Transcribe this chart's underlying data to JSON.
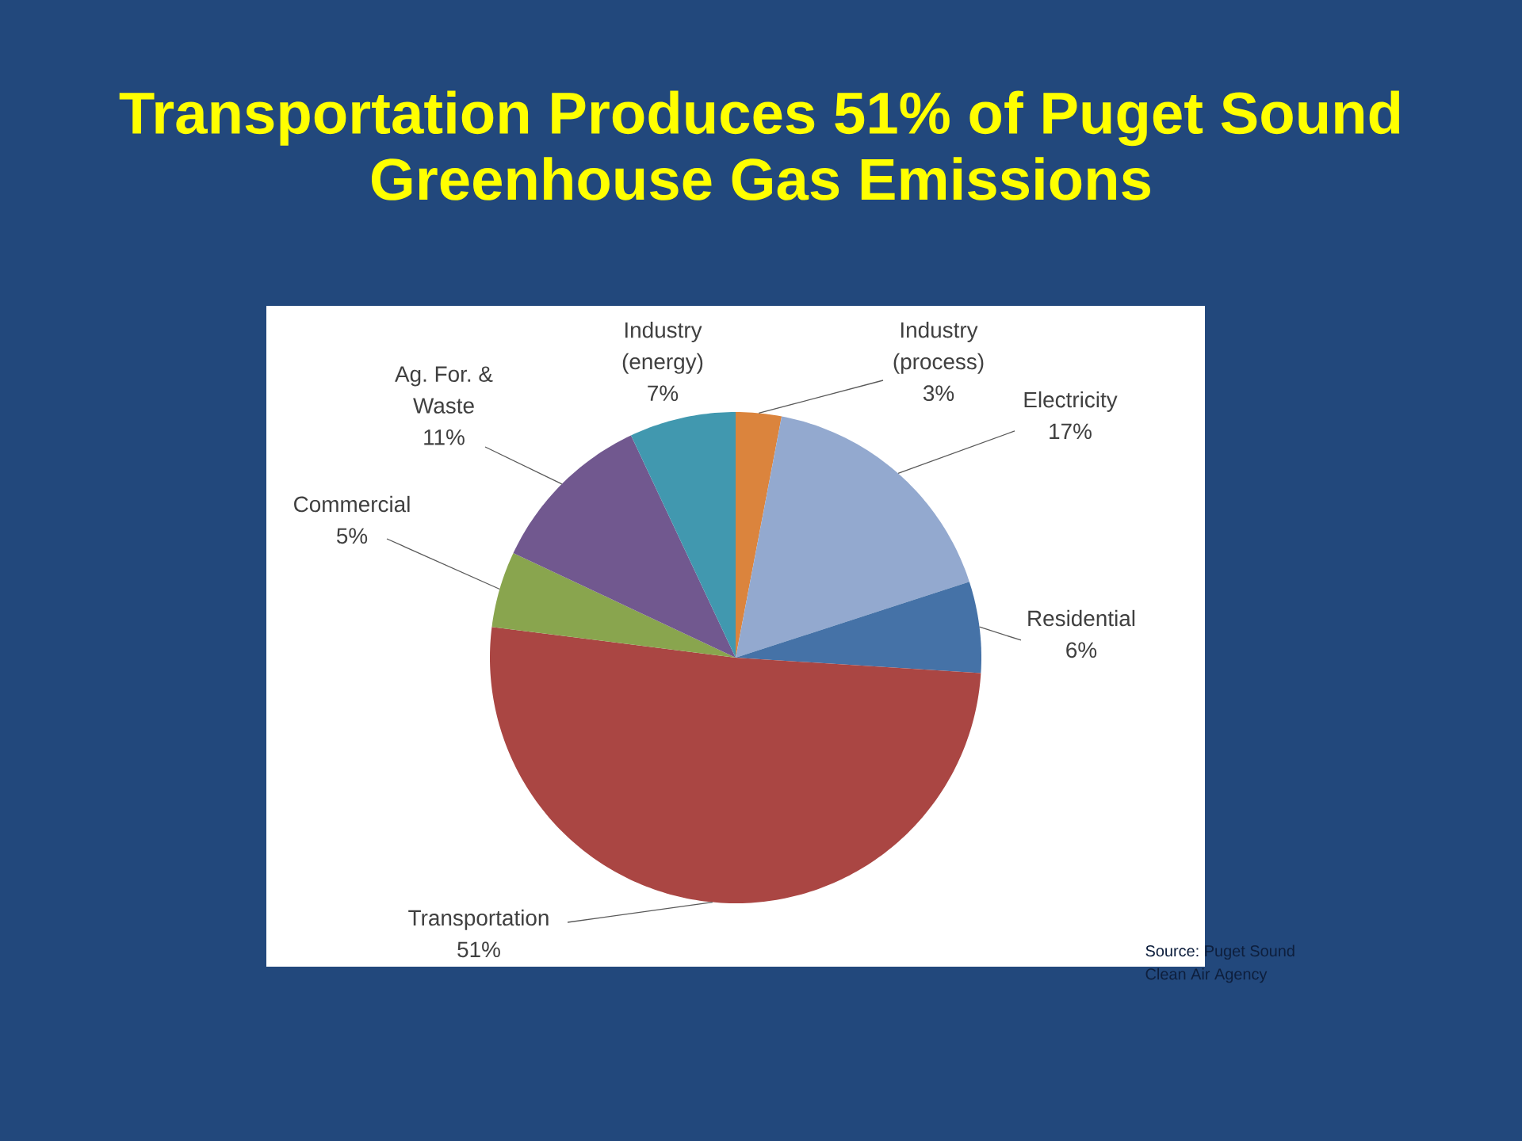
{
  "chart_data": {
    "type": "pie",
    "title": "Transportation Produces 51% of Puget Sound Greenhouse Gas Emissions",
    "categories": [
      "Industry (process)",
      "Electricity",
      "Residential",
      "Transportation",
      "Commercial",
      "Ag. For. & Waste",
      "Industry (energy)"
    ],
    "values": [
      3,
      17,
      6,
      51,
      5,
      11,
      7
    ],
    "value_labels": [
      "3%",
      "17%",
      "6%",
      "51%",
      "5%",
      "11%",
      "7%"
    ],
    "colors": [
      "#db843d",
      "#93a9cf",
      "#4572a7",
      "#aa4643",
      "#89a54e",
      "#71588f",
      "#4198af"
    ],
    "annotations": [
      "Source: Puget Sound Clean Air Agency"
    ]
  }
}
